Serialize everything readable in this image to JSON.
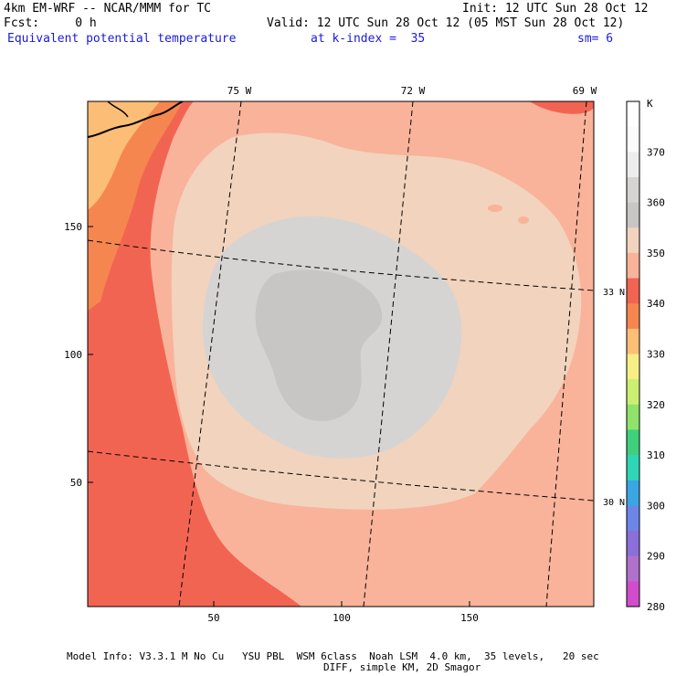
{
  "header": {
    "model": "4km EM-WRF -- NCAR/MMM for TC",
    "init": "Init: 12 UTC Sun 28 Oct 12",
    "fcst": "Fcst:     0 h",
    "valid": "Valid: 12 UTC Sun 28 Oct 12 (05 MST Sun 28 Oct 12)",
    "field": "Equivalent potential temperature",
    "kindex": "at k-index =  35",
    "sm": "sm= 6"
  },
  "map": {
    "lon_labels": [
      "75 W",
      "72 W",
      "69 W"
    ],
    "lat_labels": [
      "33 N",
      "30 N"
    ],
    "y_ticks": [
      "150",
      "100",
      "50"
    ],
    "x_ticks": [
      "50",
      "100",
      "150"
    ]
  },
  "colorbar": {
    "unit": "K",
    "levels": [
      "370",
      "360",
      "350",
      "340",
      "330",
      "320",
      "310",
      "300",
      "290",
      "280"
    ],
    "colors": [
      "#ffffff",
      "#fbfbfb",
      "#ededed",
      "#d6d4d2",
      "#c8c6c5",
      "#f2d3bd",
      "#f8b39a",
      "#f26452",
      "#f5864f",
      "#fcbd76",
      "#f7ee86",
      "#cbef72",
      "#8fe36a",
      "#3fd07c",
      "#2fd6b6",
      "#3ba6e4",
      "#6b86e6",
      "#8c6fd8",
      "#b070cc",
      "#d04ecc"
    ]
  },
  "footer": {
    "line1": "Model Info: V3.3.1 M No Cu   YSU PBL  WSM 6class  Noah LSM  4.0 km,  35 levels,   20 sec",
    "line2": "DIFF, simple KM, 2D Smagor"
  }
}
